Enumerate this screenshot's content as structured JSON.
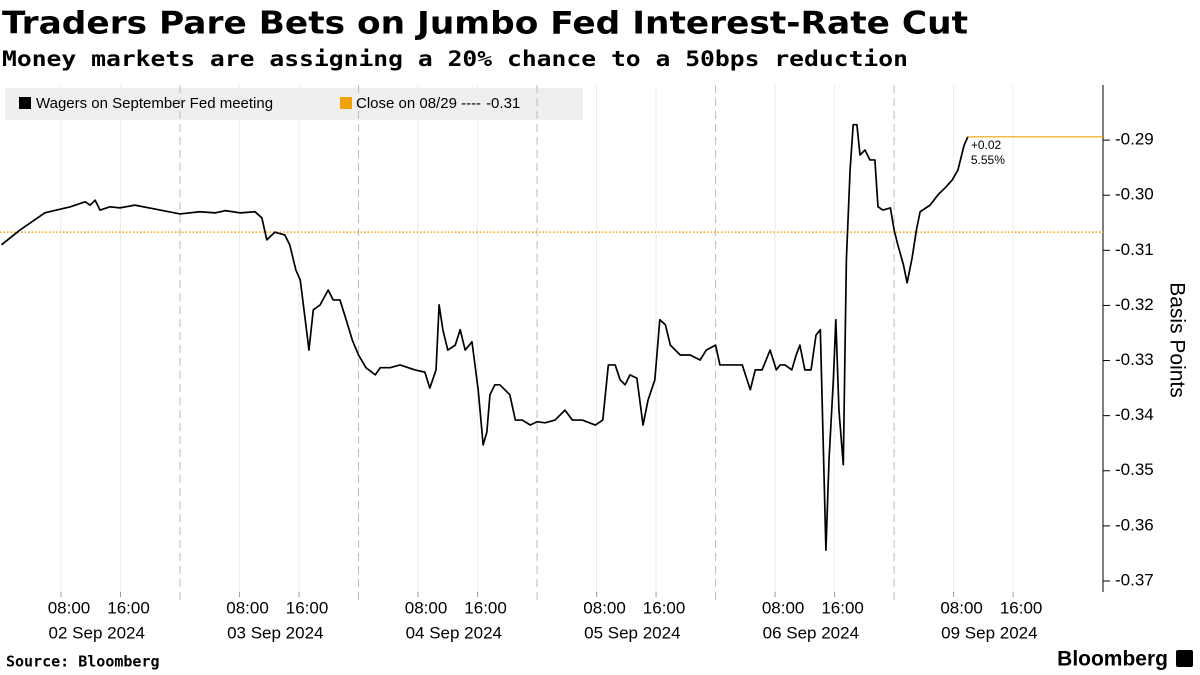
{
  "chart_data": {
    "type": "line",
    "title": "Traders Pare Bets on Jumbo Fed Interest-Rate Cut",
    "subtitle": "Money markets are assigning a 20% chance to a 50bps reduction",
    "y_label": "Basis Points",
    "source": "Source: Bloomberg",
    "brand": "Bloomberg",
    "x": [
      "2024-09-02 00:00",
      "2024-09-02 02:30",
      "2024-09-02 05:50",
      "2024-09-02 09:15",
      "2024-09-02 11:15",
      "2024-09-02 11:55",
      "2024-09-02 12:35",
      "2024-09-02 13:15",
      "2024-09-02 14:35",
      "2024-09-02 15:55",
      "2024-09-02 17:55",
      "2024-09-02 21:20",
      "2024-09-03 00:00",
      "2024-09-03 02:40",
      "2024-09-03 04:45",
      "2024-09-03 06:05",
      "2024-09-03 08:05",
      "2024-09-03 10:05",
      "2024-09-03 11:00",
      "2024-09-03 11:40",
      "2024-09-03 12:45",
      "2024-09-03 14:05",
      "2024-09-03 14:45",
      "2024-09-03 15:35",
      "2024-09-03 16:10",
      "2024-09-03 16:50",
      "2024-09-03 17:20",
      "2024-09-03 17:55",
      "2024-09-03 18:50",
      "2024-09-03 19:55",
      "2024-09-03 20:35",
      "2024-09-03 21:30",
      "2024-09-03 22:20",
      "2024-09-03 23:10",
      "2024-09-04 00:00",
      "2024-09-04 01:00",
      "2024-09-04 02:15",
      "2024-09-04 02:55",
      "2024-09-04 04:15",
      "2024-09-04 05:35",
      "2024-09-04 07:35",
      "2024-09-04 08:55",
      "2024-09-04 09:35",
      "2024-09-04 10:25",
      "2024-09-04 10:50",
      "2024-09-04 11:20",
      "2024-09-04 12:00",
      "2024-09-04 13:00",
      "2024-09-04 13:40",
      "2024-09-04 14:20",
      "2024-09-04 15:15",
      "2024-09-04 16:05",
      "2024-09-04 16:45",
      "2024-09-04 17:15",
      "2024-09-04 17:40",
      "2024-09-04 18:20",
      "2024-09-04 19:00",
      "2024-09-04 19:40",
      "2024-09-04 20:20",
      "2024-09-04 21:05",
      "2024-09-04 22:00",
      "2024-09-04 23:05",
      "2024-09-05 00:00",
      "2024-09-05 01:05",
      "2024-09-05 02:25",
      "2024-09-05 03:45",
      "2024-09-05 04:45",
      "2024-09-05 06:05",
      "2024-09-05 07:50",
      "2024-09-05 08:50",
      "2024-09-05 09:35",
      "2024-09-05 10:30",
      "2024-09-05 11:10",
      "2024-09-05 11:50",
      "2024-09-05 12:30",
      "2024-09-05 13:25",
      "2024-09-05 14:15",
      "2024-09-05 14:55",
      "2024-09-05 15:50",
      "2024-09-05 16:30",
      "2024-09-05 17:15",
      "2024-09-05 17:55",
      "2024-09-05 19:15",
      "2024-09-05 20:35",
      "2024-09-05 21:55",
      "2024-09-05 22:45",
      "2024-09-06 00:00",
      "2024-09-06 00:35",
      "2024-09-06 01:55",
      "2024-09-06 03:35",
      "2024-09-06 04:40",
      "2024-09-06 05:20",
      "2024-09-06 06:15",
      "2024-09-06 07:20",
      "2024-09-06 08:10",
      "2024-09-06 08:40",
      "2024-09-06 09:20",
      "2024-09-06 10:15",
      "2024-09-06 10:50",
      "2024-09-06 11:20",
      "2024-09-06 12:00",
      "2024-09-06 12:50",
      "2024-09-06 13:30",
      "2024-09-06 14:05",
      "2024-09-06 14:50",
      "2024-09-06 15:15",
      "2024-09-06 15:50",
      "2024-09-06 16:10",
      "2024-09-06 16:35",
      "2024-09-06 17:10",
      "2024-09-06 17:35",
      "2024-09-06 18:05",
      "2024-09-06 18:30",
      "2024-09-06 19:00",
      "2024-09-06 19:25",
      "2024-09-06 20:05",
      "2024-09-06 20:45",
      "2024-09-06 21:25",
      "2024-09-06 21:50",
      "2024-09-06 22:30",
      "2024-09-06 23:30",
      "2024-09-09 00:00",
      "2024-09-09 00:30",
      "2024-09-09 01:15",
      "2024-09-09 01:45",
      "2024-09-09 02:25",
      "2024-09-09 03:00",
      "2024-09-09 03:30",
      "2024-09-09 04:50",
      "2024-09-09 05:55",
      "2024-09-09 06:50",
      "2024-09-09 07:50",
      "2024-09-09 08:35",
      "2024-09-09 09:25",
      "2024-09-09 09:55"
    ],
    "series": [
      {
        "name": "Wagers on September Fed meeting",
        "color": "#000000",
        "values": [
          -0.309,
          -0.3063,
          -0.3032,
          -0.3021,
          -0.3012,
          -0.3018,
          -0.3009,
          -0.3027,
          -0.3021,
          -0.3023,
          -0.3018,
          -0.3027,
          -0.3034,
          -0.303,
          -0.3032,
          -0.3028,
          -0.3032,
          -0.303,
          -0.3041,
          -0.3081,
          -0.3067,
          -0.3072,
          -0.309,
          -0.3136,
          -0.3154,
          -0.3226,
          -0.3281,
          -0.3208,
          -0.3199,
          -0.3172,
          -0.319,
          -0.319,
          -0.3226,
          -0.3263,
          -0.329,
          -0.3313,
          -0.3326,
          -0.3313,
          -0.3313,
          -0.3308,
          -0.3317,
          -0.3321,
          -0.335,
          -0.3317,
          -0.3199,
          -0.3244,
          -0.3281,
          -0.3272,
          -0.3244,
          -0.3281,
          -0.3266,
          -0.3353,
          -0.3453,
          -0.343,
          -0.3362,
          -0.3344,
          -0.3344,
          -0.3353,
          -0.3362,
          -0.3408,
          -0.3408,
          -0.3417,
          -0.3411,
          -0.3413,
          -0.3408,
          -0.339,
          -0.3408,
          -0.3408,
          -0.3417,
          -0.3408,
          -0.3308,
          -0.3308,
          -0.3335,
          -0.3344,
          -0.3326,
          -0.3332,
          -0.3417,
          -0.3372,
          -0.3335,
          -0.3226,
          -0.3235,
          -0.3272,
          -0.329,
          -0.329,
          -0.3299,
          -0.3281,
          -0.3272,
          -0.3308,
          -0.3308,
          -0.3308,
          -0.3353,
          -0.3317,
          -0.3317,
          -0.3281,
          -0.3317,
          -0.3308,
          -0.3308,
          -0.3317,
          -0.329,
          -0.3272,
          -0.3317,
          -0.3317,
          -0.3254,
          -0.3244,
          -0.3644,
          -0.348,
          -0.3335,
          -0.3226,
          -0.339,
          -0.3489,
          -0.3117,
          -0.2954,
          -0.2872,
          -0.2872,
          -0.2927,
          -0.2918,
          -0.2936,
          -0.2936,
          -0.3021,
          -0.3027,
          -0.3023,
          -0.3063,
          -0.309,
          -0.3126,
          -0.3159,
          -0.3114,
          -0.3063,
          -0.303,
          -0.3018,
          -0.2999,
          -0.2987,
          -0.2972,
          -0.2954,
          -0.2909,
          -0.2894
        ]
      }
    ],
    "reference_line": {
      "name": "Close on 08/29 ----",
      "value": -0.3067,
      "value_label": "-0.31",
      "color": "#f0a20a"
    },
    "annotations": [
      "+0.02",
      "5.55%"
    ],
    "xlim": [
      "2024-09-02 00:00",
      "2024-09-10 04:05"
    ],
    "skip_weekends": true,
    "xticks": [
      {
        "value": "2024-09-02 08:00",
        "label": "08:00"
      },
      {
        "value": "2024-09-02 16:00",
        "label": "16:00"
      },
      {
        "value": "2024-09-03 08:00",
        "label": "08:00"
      },
      {
        "value": "2024-09-03 16:00",
        "label": "16:00"
      },
      {
        "value": "2024-09-04 08:00",
        "label": "08:00"
      },
      {
        "value": "2024-09-04 16:00",
        "label": "16:00"
      },
      {
        "value": "2024-09-05 08:00",
        "label": "08:00"
      },
      {
        "value": "2024-09-05 16:00",
        "label": "16:00"
      },
      {
        "value": "2024-09-06 08:00",
        "label": "08:00"
      },
      {
        "value": "2024-09-06 16:00",
        "label": "16:00"
      },
      {
        "value": "2024-09-09 08:00",
        "label": "08:00"
      },
      {
        "value": "2024-09-09 16:00",
        "label": "16:00"
      }
    ],
    "date_labels": [
      "02 Sep 2024",
      "03 Sep 2024",
      "04 Sep 2024",
      "05 Sep 2024",
      "06 Sep 2024",
      "09 Sep 2024"
    ],
    "ylim": [
      -0.372,
      -0.28
    ],
    "yticks": [
      -0.29,
      {
        "value": -0.3,
        "label": "-0.30"
      },
      -0.31,
      -0.32,
      -0.33,
      -0.34,
      -0.35,
      -0.36,
      -0.37
    ],
    "y_axis_side": "right",
    "grid": true
  }
}
